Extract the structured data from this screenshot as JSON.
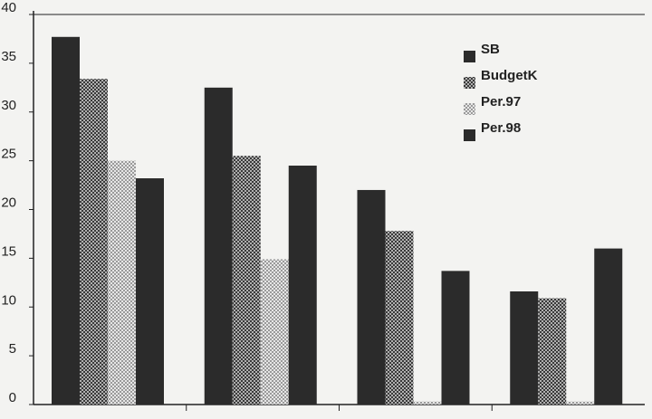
{
  "chart_data": {
    "type": "bar",
    "title": "",
    "xlabel": "",
    "ylabel": "",
    "categories": [
      "",
      "",
      "",
      ""
    ],
    "ylim": [
      0,
      40
    ],
    "yticks": [
      "0",
      "5",
      "10",
      "15",
      "20",
      "25",
      "30",
      "35",
      "40"
    ],
    "grid": false,
    "legend_position": "top-right",
    "series": [
      {
        "name": "SB",
        "values": [
          37.7,
          32.5,
          22.0,
          11.6
        ],
        "color": "#2b2b2b",
        "pattern": "solid"
      },
      {
        "name": "BudgetK",
        "values": [
          33.4,
          25.5,
          17.8,
          10.9
        ],
        "color": "#7a7a7a",
        "pattern": "dense-check"
      },
      {
        "name": "Per.97",
        "values": [
          25.0,
          14.9,
          0.3,
          0.3
        ],
        "color": "#c8c8c8",
        "pattern": "light-check"
      },
      {
        "name": "Per.98",
        "values": [
          23.2,
          24.5,
          13.7,
          16.0
        ],
        "color": "#2b2b2b",
        "pattern": "solid"
      }
    ]
  }
}
